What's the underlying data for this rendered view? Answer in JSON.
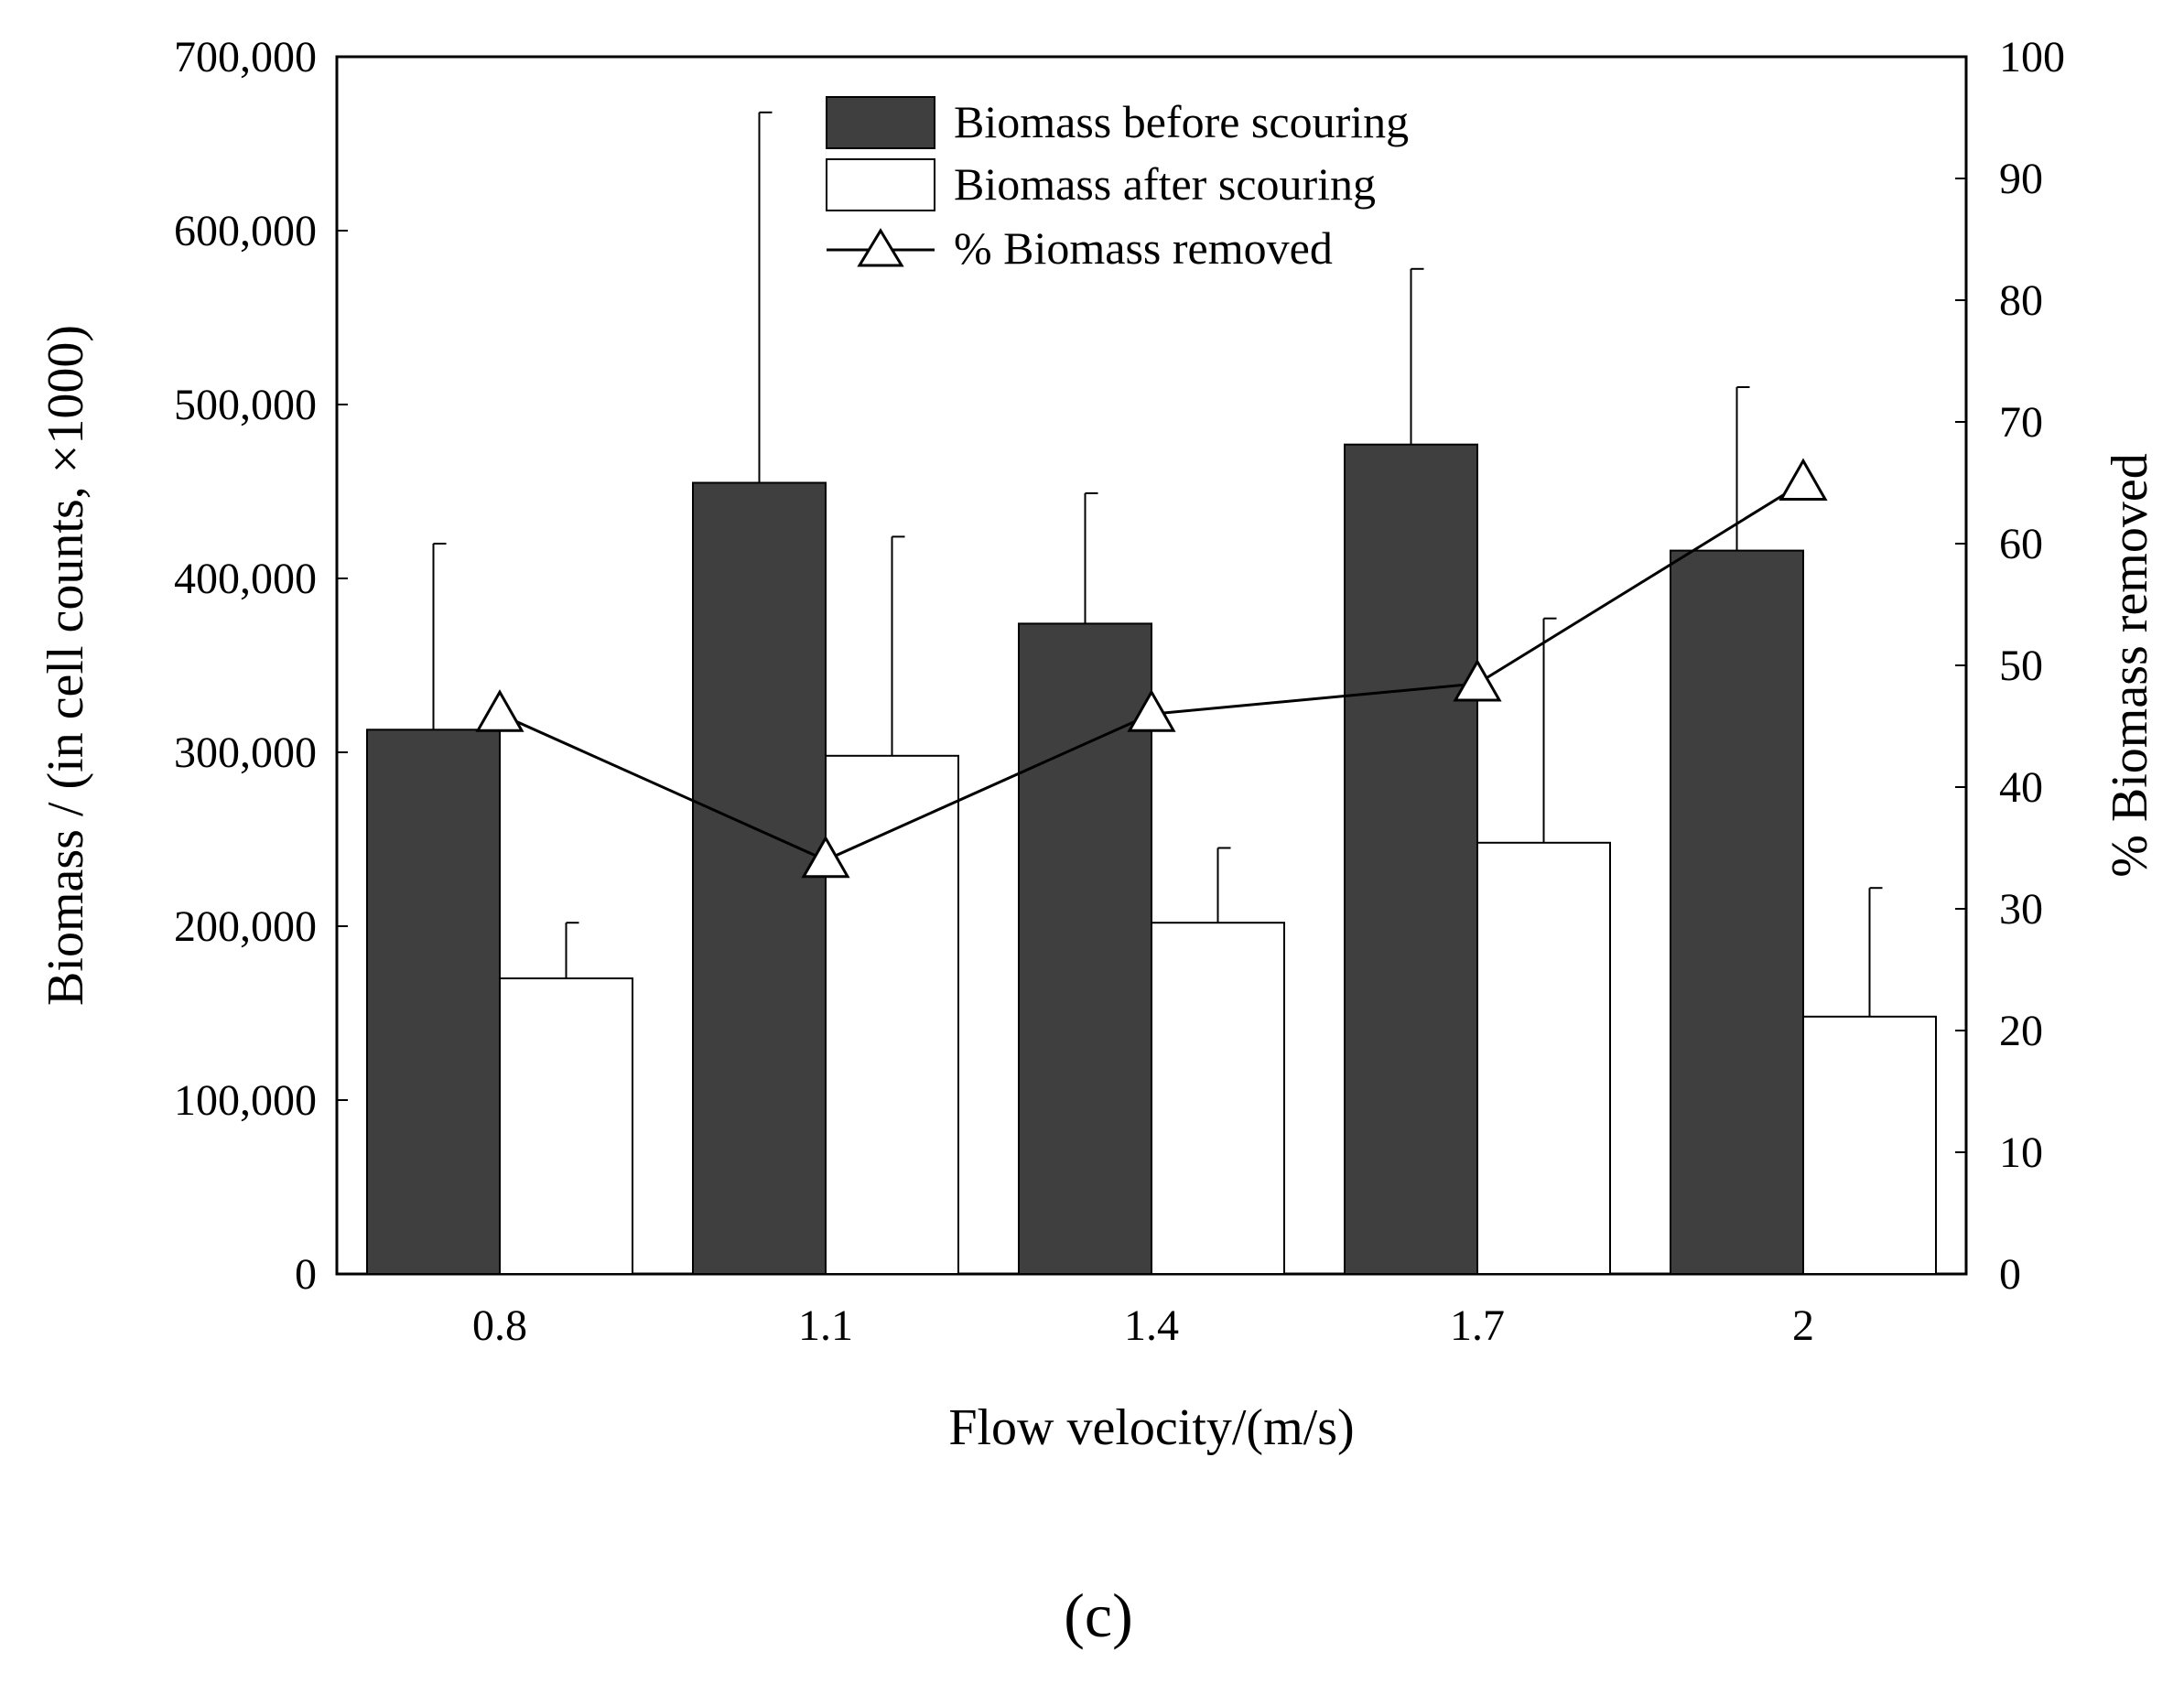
{
  "chart_data": {
    "type": "bar",
    "categories": [
      "0.8",
      "1.1",
      "1.4",
      "1.7",
      "2"
    ],
    "series": [
      {
        "name": "Biomass before scouring",
        "kind": "bar",
        "axis": "left",
        "color": "#3f3f3f",
        "values": [
          313000,
          455000,
          374000,
          477000,
          416000
        ],
        "error_upper": [
          420000,
          668000,
          449000,
          578000,
          510000
        ]
      },
      {
        "name": "Biomass after scouring",
        "kind": "bar",
        "axis": "left",
        "color": "#ffffff",
        "values": [
          170000,
          298000,
          202000,
          248000,
          148000
        ],
        "error_upper": [
          202000,
          424000,
          245000,
          377000,
          222000
        ]
      },
      {
        "name": "% Biomass removed",
        "kind": "line",
        "axis": "right",
        "marker": "open-triangle",
        "values": [
          46,
          34,
          46,
          48.5,
          65
        ]
      }
    ],
    "xlabel": "Flow velocity/(m/s)",
    "ylabel": "Biomass / (in cell counts, ×1000)",
    "y2label": "% Biomass removed",
    "ylim": [
      0,
      700000
    ],
    "y2lim": [
      0,
      100
    ],
    "yticks": [
      "0",
      "100,000",
      "200,000",
      "300,000",
      "400,000",
      "500,000",
      "600,000",
      "700,000"
    ],
    "y2ticks": [
      "0",
      "10",
      "20",
      "30",
      "40",
      "50",
      "60",
      "70",
      "80",
      "90",
      "100"
    ],
    "legend_position": "top-center",
    "panel_label": "(c)"
  }
}
